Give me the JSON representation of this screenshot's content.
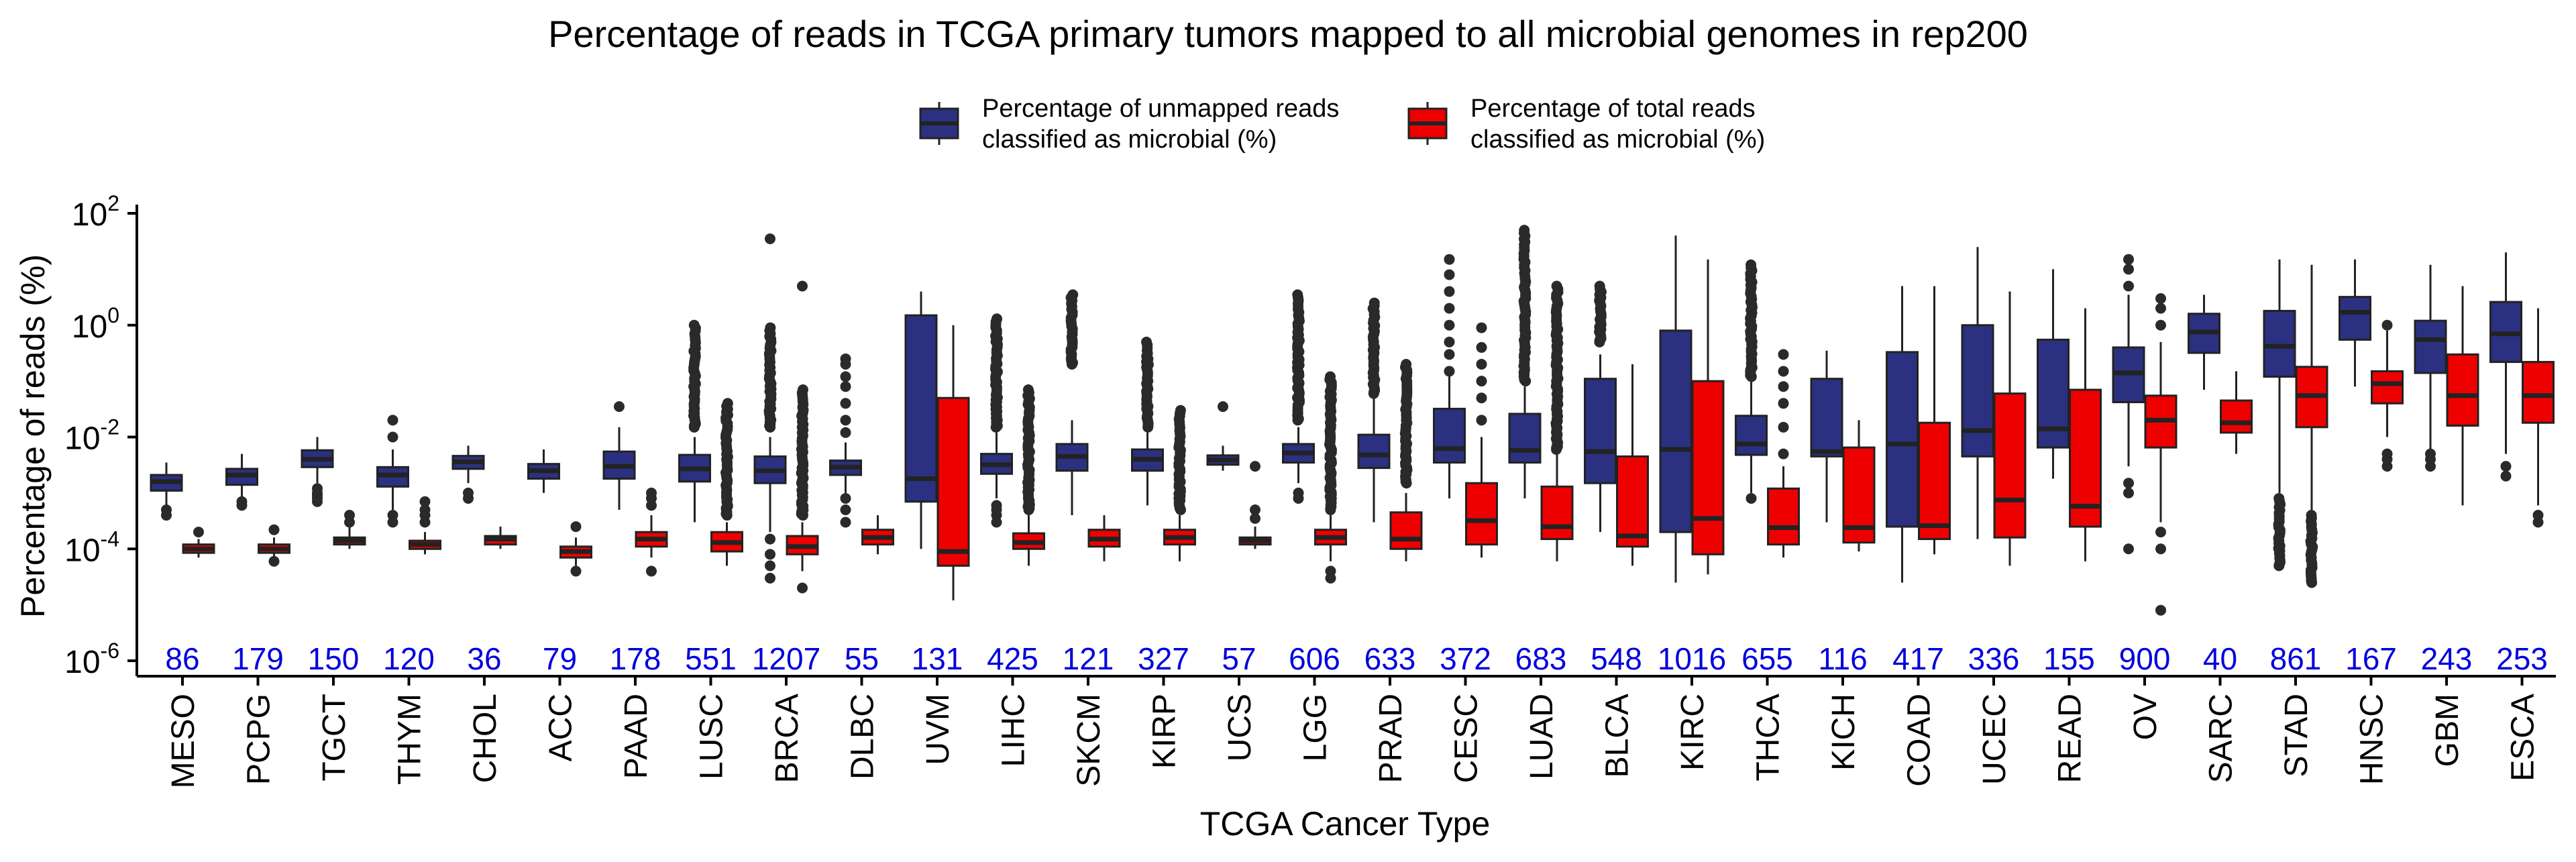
{
  "chart_data": {
    "type": "box",
    "title": "Percentage of reads in TCGA primary tumors mapped to all microbial genomes in rep200",
    "xlabel": "TCGA Cancer Type",
    "ylabel": "Percentage of reads (%)",
    "y_scale": "log10",
    "ylim": [
      1e-06,
      100
    ],
    "y_ticks": [
      {
        "base": "10",
        "exp": "2",
        "value": 100
      },
      {
        "base": "10",
        "exp": "0",
        "value": 1
      },
      {
        "base": "10",
        "exp": "-2",
        "value": 0.01
      },
      {
        "base": "10",
        "exp": "-4",
        "value": 0.0001
      },
      {
        "base": "10",
        "exp": "-6",
        "value": 1e-06
      }
    ],
    "legend": {
      "placement": "top-center",
      "items": [
        {
          "key": "unmapped",
          "line1": "Percentage of unmapped reads",
          "line2": "classified as microbial (%)",
          "color": "#2b3180"
        },
        {
          "key": "total",
          "line1": "Percentage of total reads",
          "line2": "classified as microbial (%)",
          "color": "#ee0000"
        }
      ]
    },
    "count_color": "#0000dd",
    "categories": [
      {
        "name": "MESO",
        "n": "86",
        "unmapped": {
          "q1": 0.0011,
          "median": 0.0016,
          "q3": 0.0021,
          "wlo": 0.0006,
          "whi": 0.0035,
          "outliers": [
            0.0005,
            0.0004
          ]
        },
        "total": {
          "q1": 8.5e-05,
          "median": 0.0001,
          "q3": 0.00012,
          "wlo": 7e-05,
          "whi": 0.00015,
          "outliers": [
            0.0002
          ]
        }
      },
      {
        "name": "PCPG",
        "n": "179",
        "unmapped": {
          "q1": 0.0014,
          "median": 0.0021,
          "q3": 0.0027,
          "wlo": 0.0008,
          "whi": 0.005,
          "outliers": [
            0.0007,
            0.0006
          ]
        },
        "total": {
          "q1": 8.5e-05,
          "median": 0.0001,
          "q3": 0.00012,
          "wlo": 7e-05,
          "whi": 0.00016,
          "outliers": [
            0.00022,
            6e-05
          ]
        }
      },
      {
        "name": "TGCT",
        "n": "150",
        "unmapped": {
          "q1": 0.0029,
          "median": 0.004,
          "q3": 0.0058,
          "wlo": 0.0015,
          "whi": 0.01,
          "outliers": [
            0.0012,
            0.001,
            0.0009,
            0.0008,
            0.0007
          ]
        },
        "total": {
          "q1": 0.00012,
          "median": 0.00014,
          "q3": 0.00016,
          "wlo": 0.0001,
          "whi": 0.00025,
          "outliers": [
            0.0003,
            0.0004
          ]
        }
      },
      {
        "name": "THYM",
        "n": "120",
        "unmapped": {
          "q1": 0.0013,
          "median": 0.0021,
          "q3": 0.0029,
          "wlo": 0.0005,
          "whi": 0.006,
          "outliers": [
            0.01,
            0.02,
            0.0004,
            0.0003
          ]
        },
        "total": {
          "q1": 0.0001,
          "median": 0.00012,
          "q3": 0.00014,
          "wlo": 8e-05,
          "whi": 0.0002,
          "outliers": [
            0.0003,
            0.0004,
            0.0005,
            0.0007
          ]
        }
      },
      {
        "name": "CHOL",
        "n": "36",
        "unmapped": {
          "q1": 0.0027,
          "median": 0.0036,
          "q3": 0.0046,
          "wlo": 0.0015,
          "whi": 0.007,
          "outliers": [
            0.001,
            0.0008
          ]
        },
        "total": {
          "q1": 0.00012,
          "median": 0.00015,
          "q3": 0.00017,
          "wlo": 0.0001,
          "whi": 0.00025,
          "outliers": []
        }
      },
      {
        "name": "ACC",
        "n": "79",
        "unmapped": {
          "q1": 0.0018,
          "median": 0.0025,
          "q3": 0.0033,
          "wlo": 0.001,
          "whi": 0.006,
          "outliers": []
        },
        "total": {
          "q1": 7e-05,
          "median": 9e-05,
          "q3": 0.00011,
          "wlo": 5e-05,
          "whi": 0.00016,
          "outliers": [
            4e-05,
            0.00025
          ]
        }
      },
      {
        "name": "PAAD",
        "n": "178",
        "unmapped": {
          "q1": 0.0018,
          "median": 0.003,
          "q3": 0.0055,
          "wlo": 0.0005,
          "whi": 0.015,
          "outliers": [
            0.035
          ]
        },
        "total": {
          "q1": 0.00011,
          "median": 0.00015,
          "q3": 0.0002,
          "wlo": 7e-05,
          "whi": 0.0004,
          "outliers": [
            0.0006,
            0.0008,
            0.001,
            4e-05
          ]
        }
      },
      {
        "name": "LUSC",
        "n": "551",
        "unmapped": {
          "q1": 0.0016,
          "median": 0.0027,
          "q3": 0.0048,
          "wlo": 0.0003,
          "whi": 0.01,
          "outliers_range": [
            0.015,
            1.0
          ]
        },
        "total": {
          "q1": 9e-05,
          "median": 0.00013,
          "q3": 0.0002,
          "wlo": 5e-05,
          "whi": 0.0003,
          "outliers_range": [
            0.0004,
            0.04
          ]
        }
      },
      {
        "name": "BRCA",
        "n": "1207",
        "unmapped": {
          "q1": 0.0015,
          "median": 0.0025,
          "q3": 0.0045,
          "wlo": 0.0002,
          "whi": 0.01,
          "outliers_range": [
            0.015,
            0.9
          ],
          "outliers": [
            0.00015,
            8e-05,
            5e-05,
            3e-05,
            35
          ]
        },
        "total": {
          "q1": 8e-05,
          "median": 0.00011,
          "q3": 0.00017,
          "wlo": 4e-05,
          "whi": 0.0003,
          "outliers_range": [
            0.0004,
            0.07
          ],
          "outliers": [
            5,
            2e-05
          ]
        }
      },
      {
        "name": "DLBC",
        "n": "55",
        "unmapped": {
          "q1": 0.0021,
          "median": 0.0029,
          "q3": 0.0038,
          "wlo": 0.001,
          "whi": 0.008,
          "outliers": [
            0.012,
            0.02,
            0.04,
            0.08,
            0.12,
            0.2,
            0.25,
            0.0008,
            0.0005,
            0.0003
          ]
        },
        "total": {
          "q1": 0.00012,
          "median": 0.00016,
          "q3": 0.00022,
          "wlo": 8e-05,
          "whi": 0.0004,
          "outliers": []
        }
      },
      {
        "name": "UVM",
        "n": "131",
        "unmapped": {
          "q1": 0.0007,
          "median": 0.0018,
          "q3": 1.5,
          "wlo": 0.0001,
          "whi": 4,
          "outliers": []
        },
        "total": {
          "q1": 5e-05,
          "median": 9e-05,
          "q3": 0.05,
          "wlo": 1.2e-05,
          "whi": 1,
          "outliers": []
        }
      },
      {
        "name": "LIHC",
        "n": "425",
        "unmapped": {
          "q1": 0.0022,
          "median": 0.0032,
          "q3": 0.005,
          "wlo": 0.0008,
          "whi": 0.012,
          "outliers_range": [
            0.015,
            1.3
          ],
          "outliers": [
            0.0006,
            0.0005,
            0.0004,
            0.0003
          ]
        },
        "total": {
          "q1": 0.0001,
          "median": 0.00013,
          "q3": 0.00019,
          "wlo": 5e-05,
          "whi": 0.0004,
          "outliers_range": [
            0.0005,
            0.07
          ]
        }
      },
      {
        "name": "SKCM",
        "n": "121",
        "unmapped": {
          "q1": 0.0025,
          "median": 0.0045,
          "q3": 0.0075,
          "wlo": 0.0004,
          "whi": 0.02,
          "outliers_range": [
            0.2,
            3.5
          ]
        },
        "total": {
          "q1": 0.00011,
          "median": 0.00015,
          "q3": 0.00022,
          "wlo": 6e-05,
          "whi": 0.0004,
          "outliers": []
        }
      },
      {
        "name": "KIRP",
        "n": "327",
        "unmapped": {
          "q1": 0.0025,
          "median": 0.004,
          "q3": 0.006,
          "wlo": 0.0006,
          "whi": 0.012,
          "outliers_range": [
            0.015,
            0.5
          ]
        },
        "total": {
          "q1": 0.00012,
          "median": 0.00016,
          "q3": 0.00022,
          "wlo": 6e-05,
          "whi": 0.0004,
          "outliers_range": [
            0.0005,
            0.03
          ]
        }
      },
      {
        "name": "UCS",
        "n": "57",
        "unmapped": {
          "q1": 0.0032,
          "median": 0.0039,
          "q3": 0.0047,
          "wlo": 0.0025,
          "whi": 0.007,
          "outliers": [
            0.035
          ]
        },
        "total": {
          "q1": 0.00012,
          "median": 0.00014,
          "q3": 0.00016,
          "wlo": 0.0001,
          "whi": 0.00025,
          "outliers": [
            0.00035,
            0.0005,
            0.003
          ]
        }
      },
      {
        "name": "LGG",
        "n": "606",
        "unmapped": {
          "q1": 0.0035,
          "median": 0.0052,
          "q3": 0.0075,
          "wlo": 0.0015,
          "whi": 0.015,
          "outliers_range": [
            0.02,
            3.5
          ],
          "outliers": [
            0.001,
            0.0008
          ]
        },
        "total": {
          "q1": 0.00012,
          "median": 0.00016,
          "q3": 0.00022,
          "wlo": 6e-05,
          "whi": 0.0004,
          "outliers_range": [
            0.0005,
            0.12
          ],
          "outliers": [
            4e-05,
            3e-05
          ]
        }
      },
      {
        "name": "PRAD",
        "n": "633",
        "unmapped": {
          "q1": 0.0028,
          "median": 0.0048,
          "q3": 0.011,
          "wlo": 0.0003,
          "whi": 0.05,
          "outliers_range": [
            0.06,
            2.5
          ]
        },
        "total": {
          "q1": 0.0001,
          "median": 0.00015,
          "q3": 0.00045,
          "wlo": 6e-05,
          "whi": 0.001,
          "outliers_range": [
            0.0015,
            0.2
          ]
        }
      },
      {
        "name": "CESC",
        "n": "372",
        "unmapped": {
          "q1": 0.0035,
          "median": 0.0062,
          "q3": 0.032,
          "wlo": 0.0008,
          "whi": 0.12,
          "outliers": [
            0.15,
            0.3,
            0.5,
            1.0,
            2.0,
            4.0,
            8.0,
            15.0
          ]
        },
        "total": {
          "q1": 0.00012,
          "median": 0.00032,
          "q3": 0.0015,
          "wlo": 7e-05,
          "whi": 0.01,
          "outliers": [
            0.02,
            0.05,
            0.1,
            0.2,
            0.4,
            0.9
          ]
        }
      },
      {
        "name": "LUAD",
        "n": "683",
        "unmapped": {
          "q1": 0.0035,
          "median": 0.0058,
          "q3": 0.026,
          "wlo": 0.0008,
          "whi": 0.08,
          "outliers_range": [
            0.1,
            50
          ]
        },
        "total": {
          "q1": 0.00015,
          "median": 0.00025,
          "q3": 0.0013,
          "wlo": 6e-05,
          "whi": 0.005,
          "outliers_range": [
            0.006,
            5
          ]
        }
      },
      {
        "name": "BLCA",
        "n": "548",
        "unmapped": {
          "q1": 0.0015,
          "median": 0.0055,
          "q3": 0.11,
          "wlo": 0.0002,
          "whi": 0.3,
          "outliers_range": [
            0.5,
            5
          ]
        },
        "total": {
          "q1": 0.00011,
          "median": 0.00017,
          "q3": 0.0045,
          "wlo": 5e-05,
          "whi": 0.2,
          "outliers": []
        }
      },
      {
        "name": "KIRC",
        "n": "1016",
        "unmapped": {
          "q1": 0.0002,
          "median": 0.006,
          "q3": 0.8,
          "wlo": 2.5e-05,
          "whi": 40,
          "outliers": []
        },
        "total": {
          "q1": 8e-05,
          "median": 0.00035,
          "q3": 0.1,
          "wlo": 3.5e-05,
          "whi": 15,
          "outliers": []
        }
      },
      {
        "name": "THCA",
        "n": "655",
        "unmapped": {
          "q1": 0.0048,
          "median": 0.0075,
          "q3": 0.024,
          "wlo": 0.001,
          "whi": 0.1,
          "outliers_range": [
            0.12,
            12
          ],
          "outliers": [
            0.0008
          ]
        },
        "total": {
          "q1": 0.00012,
          "median": 0.00024,
          "q3": 0.0012,
          "wlo": 7e-05,
          "whi": 0.003,
          "outliers": [
            0.005,
            0.015,
            0.04,
            0.08,
            0.15,
            0.3
          ]
        }
      },
      {
        "name": "KICH",
        "n": "116",
        "unmapped": {
          "q1": 0.0045,
          "median": 0.0055,
          "q3": 0.11,
          "wlo": 0.0003,
          "whi": 0.35,
          "outliers": []
        },
        "total": {
          "q1": 0.00013,
          "median": 0.00024,
          "q3": 0.0065,
          "wlo": 9e-05,
          "whi": 0.02,
          "outliers": []
        }
      },
      {
        "name": "COAD",
        "n": "417",
        "unmapped": {
          "q1": 0.00025,
          "median": 0.0075,
          "q3": 0.33,
          "wlo": 2.5e-05,
          "whi": 5,
          "outliers": []
        },
        "total": {
          "q1": 0.00015,
          "median": 0.00026,
          "q3": 0.018,
          "wlo": 8e-05,
          "whi": 5,
          "outliers": []
        }
      },
      {
        "name": "UCEC",
        "n": "336",
        "unmapped": {
          "q1": 0.0045,
          "median": 0.013,
          "q3": 1.0,
          "wlo": 0.00015,
          "whi": 25,
          "outliers": []
        },
        "total": {
          "q1": 0.00016,
          "median": 0.00075,
          "q3": 0.06,
          "wlo": 5e-05,
          "whi": 4,
          "outliers": []
        }
      },
      {
        "name": "READ",
        "n": "155",
        "unmapped": {
          "q1": 0.0065,
          "median": 0.014,
          "q3": 0.55,
          "wlo": 0.0018,
          "whi": 10,
          "outliers": []
        },
        "total": {
          "q1": 0.00025,
          "median": 0.00058,
          "q3": 0.07,
          "wlo": 6e-05,
          "whi": 2,
          "outliers": []
        }
      },
      {
        "name": "OV",
        "n": "900",
        "unmapped": {
          "q1": 0.042,
          "median": 0.14,
          "q3": 0.4,
          "wlo": 0.003,
          "whi": 3.5,
          "outliers": [
            5,
            10,
            15,
            0.0015,
            0.001,
            0.0001
          ]
        },
        "total": {
          "q1": 0.0065,
          "median": 0.02,
          "q3": 0.055,
          "wlo": 0.0003,
          "whi": 0.5,
          "outliers": [
            1,
            2,
            3,
            0.0002,
            0.0001,
            8e-06
          ]
        }
      },
      {
        "name": "SARC",
        "n": "40",
        "unmapped": {
          "q1": 0.32,
          "median": 0.75,
          "q3": 1.6,
          "wlo": 0.07,
          "whi": 3.5,
          "outliers": []
        },
        "total": {
          "q1": 0.012,
          "median": 0.018,
          "q3": 0.045,
          "wlo": 0.005,
          "whi": 0.15,
          "outliers": []
        }
      },
      {
        "name": "STAD",
        "n": "861",
        "unmapped": {
          "q1": 0.12,
          "median": 0.42,
          "q3": 1.8,
          "wlo": 0.001,
          "whi": 15,
          "outliers_range": [
            5e-05,
            0.0008
          ]
        },
        "total": {
          "q1": 0.015,
          "median": 0.055,
          "q3": 0.18,
          "wlo": 0.0005,
          "whi": 12,
          "outliers_range": [
            2.5e-05,
            0.0004
          ]
        }
      },
      {
        "name": "HNSC",
        "n": "167",
        "unmapped": {
          "q1": 0.55,
          "median": 1.7,
          "q3": 3.2,
          "wlo": 0.08,
          "whi": 15,
          "outliers": []
        },
        "total": {
          "q1": 0.04,
          "median": 0.09,
          "q3": 0.15,
          "wlo": 0.01,
          "whi": 0.8,
          "outliers": [
            1,
            0.005,
            0.004,
            0.003
          ]
        }
      },
      {
        "name": "GBM",
        "n": "243",
        "unmapped": {
          "q1": 0.14,
          "median": 0.55,
          "q3": 1.2,
          "wlo": 0.006,
          "whi": 12,
          "outliers": [
            0.005,
            0.004,
            0.003
          ]
        },
        "total": {
          "q1": 0.016,
          "median": 0.055,
          "q3": 0.3,
          "wlo": 0.0006,
          "whi": 5,
          "outliers": []
        }
      },
      {
        "name": "ESCA",
        "n": "253",
        "unmapped": {
          "q1": 0.22,
          "median": 0.7,
          "q3": 2.6,
          "wlo": 0.005,
          "whi": 20,
          "outliers": [
            0.002,
            0.003
          ]
        },
        "total": {
          "q1": 0.018,
          "median": 0.055,
          "q3": 0.22,
          "wlo": 0.0006,
          "whi": 2,
          "outliers": [
            0.0004,
            0.0003
          ]
        }
      }
    ]
  }
}
